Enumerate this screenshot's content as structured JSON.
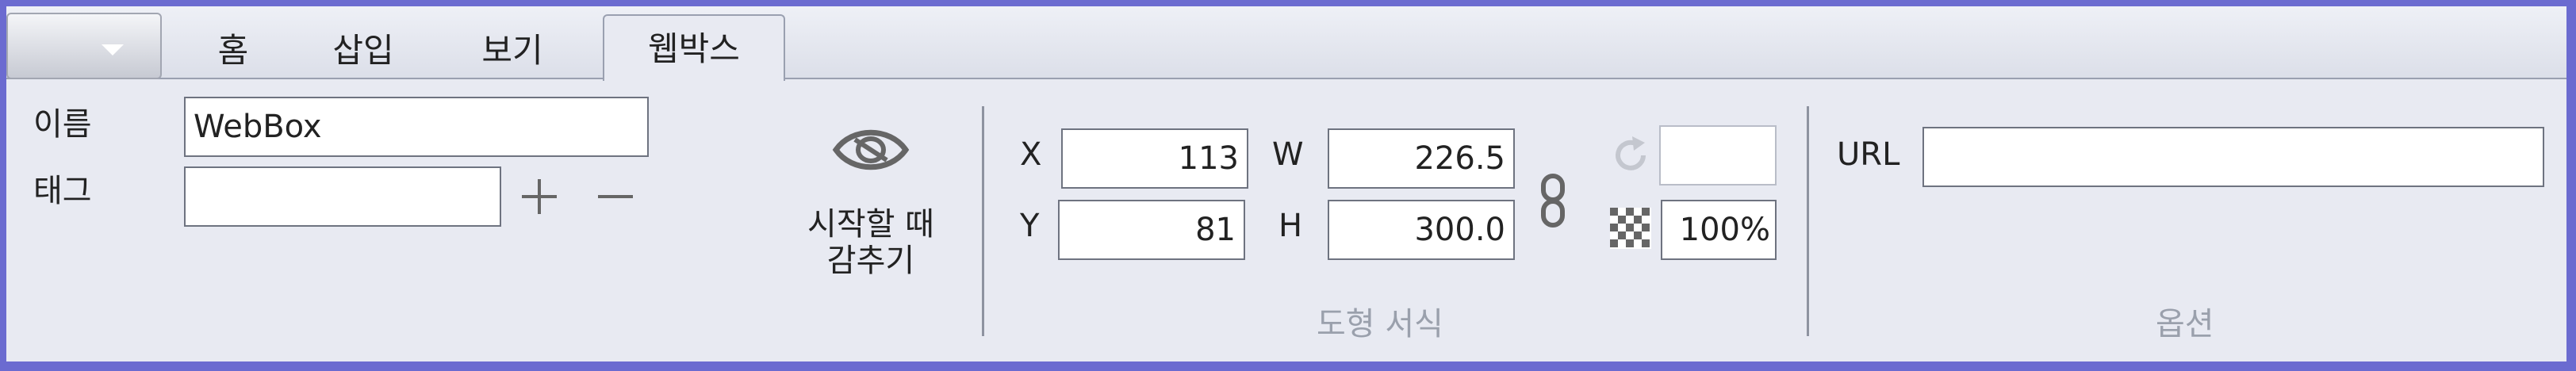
{
  "tabs": [
    {
      "label": "홈"
    },
    {
      "label": "삽입"
    },
    {
      "label": "보기"
    },
    {
      "label": "웹박스"
    }
  ],
  "active_tab": "웹박스",
  "properties": {
    "name_label": "이름",
    "name_value": "WebBox",
    "tag_label": "태그",
    "tag_value": ""
  },
  "visibility": {
    "line1": "시작할 때",
    "line2": "감추기"
  },
  "shape_format": {
    "x_label": "X",
    "x_value": "113",
    "y_label": "Y",
    "y_value": "81",
    "w_label": "W",
    "w_value": "226.5",
    "h_label": "H",
    "h_value": "300.0",
    "rotation_value": "",
    "opacity_value": "100%",
    "group_label": "도형 서식"
  },
  "options": {
    "url_label": "URL",
    "url_value": "",
    "group_label": "옵션"
  },
  "colors": {
    "outer_border": "#6b6bd0",
    "ribbon_bg": "#e8eaf2",
    "group_label": "#9aa0ac"
  }
}
